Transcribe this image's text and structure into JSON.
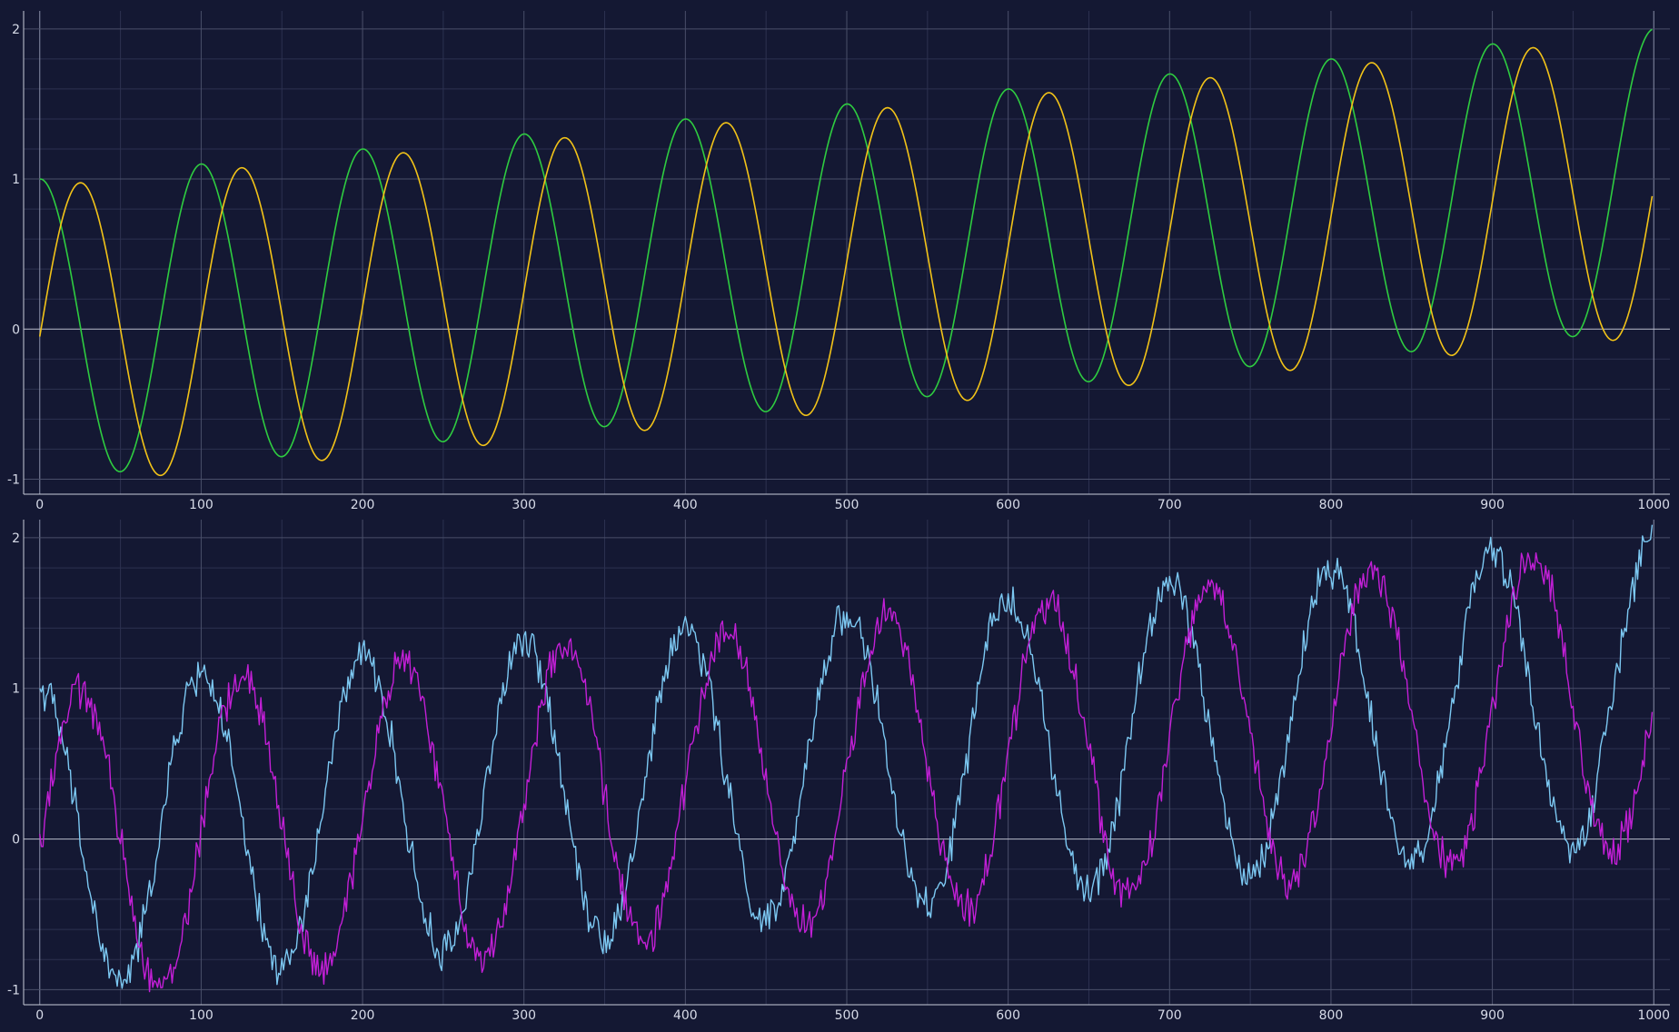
{
  "theme": {
    "background": "#141833",
    "axis_color": "#c9ccd8",
    "major_grid": "#4a4f6a",
    "minor_grid": "#2c3150",
    "zero_line": "#b9bccb",
    "tick_label_color": "#d7dbe8"
  },
  "chart_data": [
    {
      "type": "line",
      "title": "",
      "xlabel": "",
      "ylabel": "",
      "xlim": [
        -10,
        1010
      ],
      "ylim": [
        -1.1,
        2.12
      ],
      "x_ticks": [
        0,
        100,
        200,
        300,
        400,
        500,
        600,
        700,
        800,
        900,
        1000
      ],
      "x_tick_labels": [
        "0",
        "100",
        "200",
        "300",
        "400",
        "500",
        "600",
        "700",
        "800",
        "900",
        "1000"
      ],
      "y_ticks": [
        -1,
        0,
        1,
        2
      ],
      "y_tick_labels": [
        "-1",
        "0",
        "1",
        "2"
      ],
      "grid": true,
      "legend": "none",
      "series": [
        {
          "color": "#2ecc40",
          "style": "smooth",
          "formula": "cos(2*pi*x/100) + x/1000",
          "x_range": [
            0,
            999
          ],
          "samples": 1000
        },
        {
          "color": "#f2c318",
          "style": "smooth",
          "formula": "sin(2*pi*x/100) + x/1000 - 0.05",
          "x_range": [
            0,
            999
          ],
          "samples": 1000
        }
      ]
    },
    {
      "type": "line",
      "title": "",
      "xlabel": "",
      "ylabel": "",
      "xlim": [
        -10,
        1010
      ],
      "ylim": [
        -1.1,
        2.12
      ],
      "x_ticks": [
        0,
        100,
        200,
        300,
        400,
        500,
        600,
        700,
        800,
        900,
        1000
      ],
      "x_tick_labels": [
        "0",
        "100",
        "200",
        "300",
        "400",
        "500",
        "600",
        "700",
        "800",
        "900",
        "1000"
      ],
      "y_ticks": [
        -1,
        0,
        1,
        2
      ],
      "y_tick_labels": [
        "-1",
        "0",
        "1",
        "2"
      ],
      "grid": true,
      "legend": "none",
      "series": [
        {
          "color": "#7cc8f2",
          "style": "noisy",
          "formula": "cos(2*pi*x/100) + x/1000 + noise",
          "noise_amplitude": 0.1,
          "x_range": [
            0,
            999
          ],
          "samples": 1000
        },
        {
          "color": "#c21fd6",
          "style": "noisy",
          "formula": "sin(2*pi*x/100) + x/1000 - 0.05 + noise",
          "noise_amplitude": 0.1,
          "x_range": [
            0,
            999
          ],
          "samples": 1000
        }
      ]
    }
  ]
}
